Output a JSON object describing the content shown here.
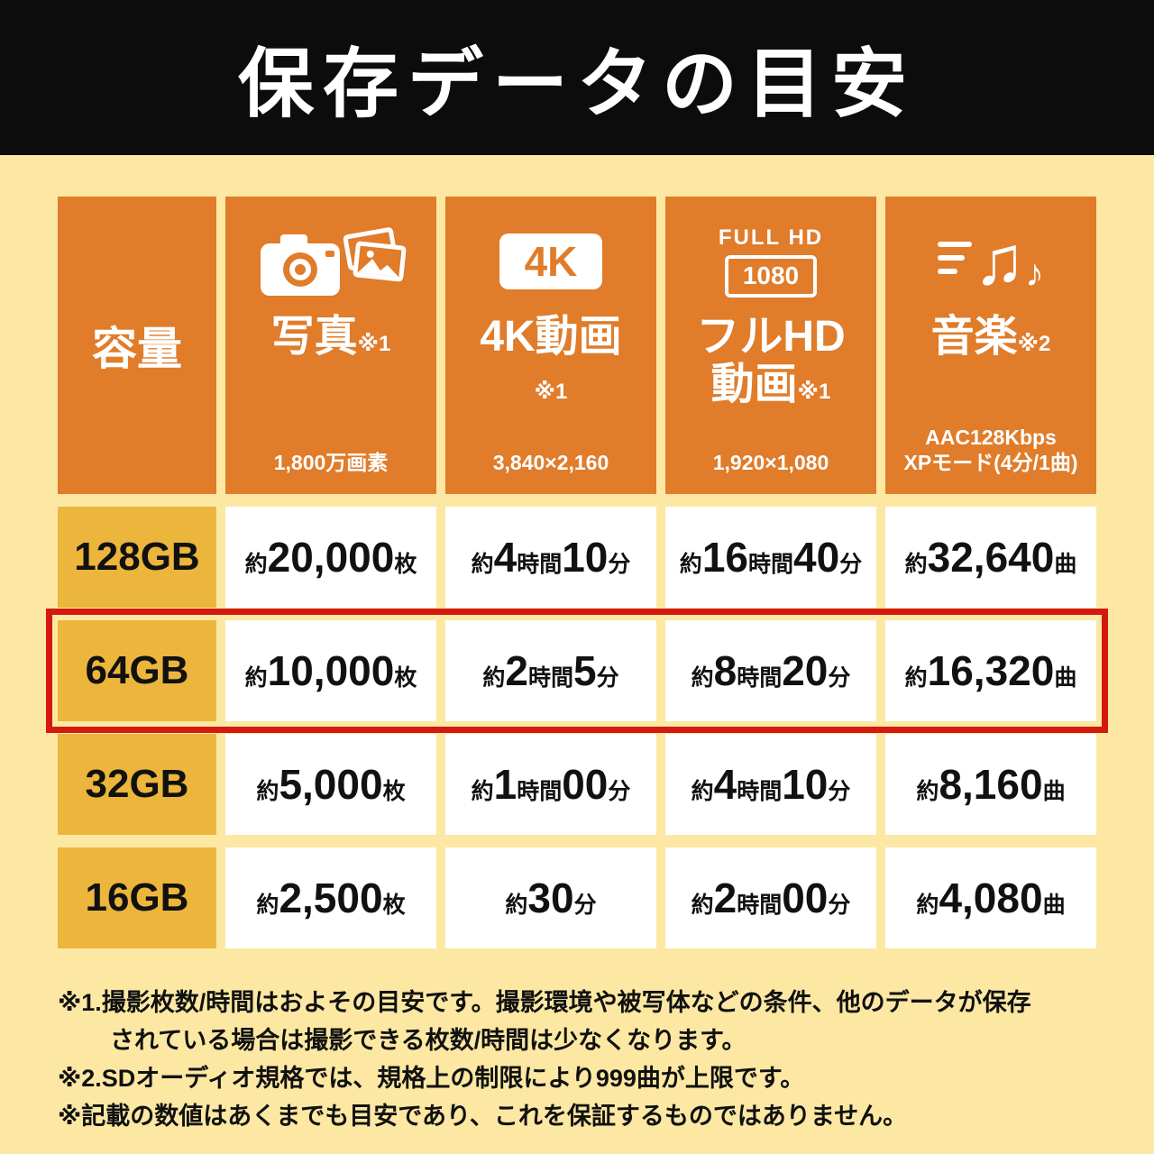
{
  "title": "保存データの目安",
  "colors": {
    "background": "#fce8a3",
    "title_bar": "#0c0c0c",
    "header_orange": "#e07c2a",
    "capacity_gold": "#ecb53b",
    "highlight_red": "#d41910",
    "cell_white": "#ffffff"
  },
  "table": {
    "capacity_header": "容量",
    "columns": [
      {
        "id": "photo",
        "icon": "camera-photos-icon",
        "title_lines": [
          [
            {
              "t": "写真"
            },
            {
              "t": "※1",
              "sup": true
            }
          ]
        ],
        "subtitle_lines": [
          "1,800万画素"
        ]
      },
      {
        "id": "video4k",
        "icon": "4k-badge-icon",
        "badge": "4K",
        "title_lines": [
          [
            {
              "t": "4K動画"
            }
          ],
          [
            {
              "t": "※1",
              "sup": true
            }
          ]
        ],
        "subtitle_lines": [
          "3,840×2,160"
        ]
      },
      {
        "id": "fullhd",
        "icon": "fullhd-badge-icon",
        "badge_label": "FULL HD",
        "badge_value": "1080",
        "title_lines": [
          [
            {
              "t": "フルHD"
            }
          ],
          [
            {
              "t": "動画"
            },
            {
              "t": "※1",
              "sup": true
            }
          ]
        ],
        "subtitle_lines": [
          "1,920×1,080"
        ]
      },
      {
        "id": "music",
        "icon": "music-notes-icon",
        "title_lines": [
          [
            {
              "t": "音楽"
            },
            {
              "t": "※2",
              "sup": true
            }
          ]
        ],
        "subtitle_lines": [
          "AAC128Kbps",
          "XPモード(4分/1曲)"
        ]
      }
    ],
    "rows": [
      {
        "capacity": "128GB",
        "highlight": false,
        "cells": [
          [
            [
              "約",
              "s"
            ],
            [
              "20,000",
              "b"
            ],
            [
              "枚",
              "s"
            ]
          ],
          [
            [
              "約",
              "s"
            ],
            [
              "4",
              "b"
            ],
            [
              "時間",
              "s"
            ],
            [
              "10",
              "b"
            ],
            [
              "分",
              "s"
            ]
          ],
          [
            [
              "約",
              "s"
            ],
            [
              "16",
              "b"
            ],
            [
              "時間",
              "s"
            ],
            [
              "40",
              "b"
            ],
            [
              "分",
              "s"
            ]
          ],
          [
            [
              "約",
              "s"
            ],
            [
              "32,640",
              "b"
            ],
            [
              "曲",
              "s"
            ]
          ]
        ]
      },
      {
        "capacity": "64GB",
        "highlight": true,
        "cells": [
          [
            [
              "約",
              "s"
            ],
            [
              "10,000",
              "b"
            ],
            [
              "枚",
              "s"
            ]
          ],
          [
            [
              "約",
              "s"
            ],
            [
              "2",
              "b"
            ],
            [
              "時間",
              "s"
            ],
            [
              "5",
              "b"
            ],
            [
              "分",
              "s"
            ]
          ],
          [
            [
              "約",
              "s"
            ],
            [
              "8",
              "b"
            ],
            [
              "時間",
              "s"
            ],
            [
              "20",
              "b"
            ],
            [
              "分",
              "s"
            ]
          ],
          [
            [
              "約",
              "s"
            ],
            [
              "16,320",
              "b"
            ],
            [
              "曲",
              "s"
            ]
          ]
        ]
      },
      {
        "capacity": "32GB",
        "highlight": false,
        "cells": [
          [
            [
              "約",
              "s"
            ],
            [
              "5,000",
              "b"
            ],
            [
              "枚",
              "s"
            ]
          ],
          [
            [
              "約",
              "s"
            ],
            [
              "1",
              "b"
            ],
            [
              "時間",
              "s"
            ],
            [
              "00",
              "b"
            ],
            [
              "分",
              "s"
            ]
          ],
          [
            [
              "約",
              "s"
            ],
            [
              "4",
              "b"
            ],
            [
              "時間",
              "s"
            ],
            [
              "10",
              "b"
            ],
            [
              "分",
              "s"
            ]
          ],
          [
            [
              "約",
              "s"
            ],
            [
              "8,160",
              "b"
            ],
            [
              "曲",
              "s"
            ]
          ]
        ]
      },
      {
        "capacity": "16GB",
        "highlight": false,
        "cells": [
          [
            [
              "約",
              "s"
            ],
            [
              "2,500",
              "b"
            ],
            [
              "枚",
              "s"
            ]
          ],
          [
            [
              "約",
              "s"
            ],
            [
              "30",
              "b"
            ],
            [
              "分",
              "s"
            ]
          ],
          [
            [
              "約",
              "s"
            ],
            [
              "2",
              "b"
            ],
            [
              "時間",
              "s"
            ],
            [
              "00",
              "b"
            ],
            [
              "分",
              "s"
            ]
          ],
          [
            [
              "約",
              "s"
            ],
            [
              "4,080",
              "b"
            ],
            [
              "曲",
              "s"
            ]
          ]
        ]
      }
    ]
  },
  "footnotes": [
    {
      "text": "※1.撮影枚数/時間はおよその目安です。撮影環境や被写体などの条件、他のデータが保存",
      "indent": false
    },
    {
      "text": "されている場合は撮影できる枚数/時間は少なくなります。",
      "indent": true
    },
    {
      "text": "※2.SDオーディオ規格では、規格上の制限により999曲が上限です。",
      "indent": false
    },
    {
      "text": "※記載の数値はあくまでも目安であり、これを保証するものではありません。",
      "indent": false
    }
  ],
  "chart_data": {
    "type": "table",
    "title": "保存データの目安",
    "columns": [
      "容量",
      "写真 (1,800万画素)",
      "4K動画 (3,840×2,160)",
      "フルHD動画 (1,920×1,080)",
      "音楽 (AAC128Kbps XPモード(4分/1曲))"
    ],
    "rows": [
      [
        "128GB",
        "約20,000枚",
        "約4時間10分",
        "約16時間40分",
        "約32,640曲"
      ],
      [
        "64GB",
        "約10,000枚",
        "約2時間5分",
        "約8時間20分",
        "約16,320曲"
      ],
      [
        "32GB",
        "約5,000枚",
        "約1時間00分",
        "約4時間10分",
        "約8,160曲"
      ],
      [
        "16GB",
        "約2,500枚",
        "約30分",
        "約2時間00分",
        "約4,080曲"
      ]
    ],
    "highlighted_row": "64GB"
  }
}
